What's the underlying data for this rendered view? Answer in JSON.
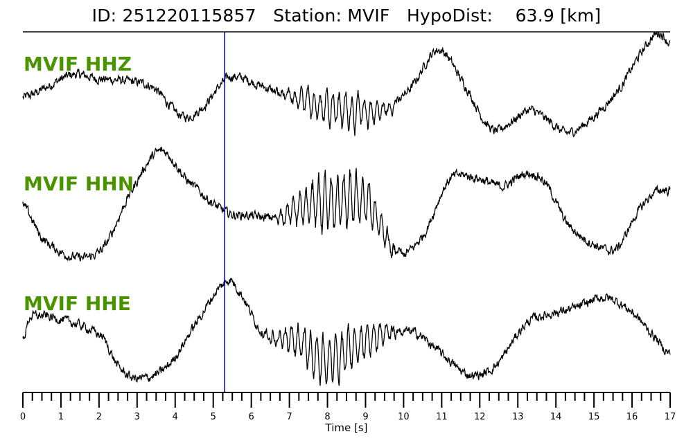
{
  "title": {
    "id_label": "ID:",
    "id_value": "251220115857",
    "station_label": "Station:",
    "station_value": "MVIF",
    "hypodist_label": "HypoDist:",
    "hypodist_value": "63.9",
    "hypodist_unit": "[km]"
  },
  "colors": {
    "trace": "#000000",
    "label": "#4a9400",
    "pick": "#0000cc",
    "axis": "#000000"
  },
  "chart_data": {
    "type": "line",
    "xlabel": "Time [s]",
    "xlim": [
      0,
      17
    ],
    "x_ticks": [
      0,
      1,
      2,
      3,
      4,
      5,
      6,
      7,
      8,
      9,
      10,
      11,
      12,
      13,
      14,
      15,
      16,
      17
    ],
    "minor_tick_step": 0.25,
    "pick_time": 5.3,
    "grid": false,
    "series": [
      {
        "name": "MVIF HHZ",
        "noise": 0.35,
        "burst": [
          6.6,
          10.0,
          1.0
        ],
        "t": [
          0,
          0.5,
          1.3,
          2.0,
          2.7,
          3.4,
          4.2,
          4.7,
          5.3,
          5.6,
          6.2,
          7.0,
          8.2,
          9.0,
          9.6,
          10.2,
          10.9,
          11.5,
          12.3,
          12.8,
          13.3,
          13.8,
          14.3,
          15.0,
          15.7,
          16.3,
          16.7,
          17.0
        ],
        "a": [
          -0.3,
          0.1,
          0.8,
          0.6,
          0.5,
          0.2,
          -1.2,
          -0.8,
          0.5,
          0.7,
          0.3,
          -0.3,
          -0.8,
          -1.0,
          -0.8,
          0.2,
          2.0,
          0.6,
          -1.8,
          -1.5,
          -0.9,
          -1.4,
          -2.0,
          -1.2,
          0.2,
          2.0,
          2.8,
          2.3
        ]
      },
      {
        "name": "MVIF HHN",
        "noise": 0.35,
        "burst": [
          6.6,
          10.0,
          1.6
        ],
        "t": [
          0,
          0.5,
          1.3,
          2.1,
          2.8,
          3.6,
          4.3,
          5.3,
          5.9,
          6.6,
          7.2,
          8.3,
          9.1,
          9.8,
          10.5,
          11.2,
          11.9,
          12.6,
          13.2,
          13.7,
          14.3,
          15.0,
          15.6,
          16.1,
          16.6,
          17.0
        ],
        "a": [
          0.3,
          -1.3,
          -2.2,
          -1.8,
          0.8,
          2.9,
          1.5,
          0.0,
          -0.2,
          -0.3,
          0.1,
          0.5,
          0.3,
          -2.0,
          -1.2,
          1.5,
          1.6,
          1.2,
          1.8,
          1.4,
          -0.6,
          -1.6,
          -1.8,
          -0.2,
          0.9,
          1.0
        ]
      },
      {
        "name": "MVIF HHE",
        "noise": 0.35,
        "burst": [
          6.3,
          10.0,
          1.3
        ],
        "t": [
          0,
          0.2,
          1.3,
          2.1,
          2.5,
          3.0,
          3.8,
          4.6,
          5.3,
          5.6,
          6.3,
          7.2,
          8.0,
          8.7,
          9.6,
          10.3,
          11.0,
          11.7,
          12.4,
          13.2,
          13.8,
          14.5,
          15.3,
          16.0,
          16.6,
          17.0
        ],
        "a": [
          -0.5,
          0.6,
          0.3,
          -0.4,
          -1.8,
          -2.4,
          -1.8,
          0.4,
          2.2,
          2.0,
          -0.2,
          -0.6,
          -1.5,
          -0.8,
          -0.2,
          -0.2,
          -1.2,
          -2.2,
          -1.8,
          0.2,
          0.7,
          1.0,
          1.5,
          0.8,
          -0.4,
          -1.2
        ]
      }
    ]
  }
}
